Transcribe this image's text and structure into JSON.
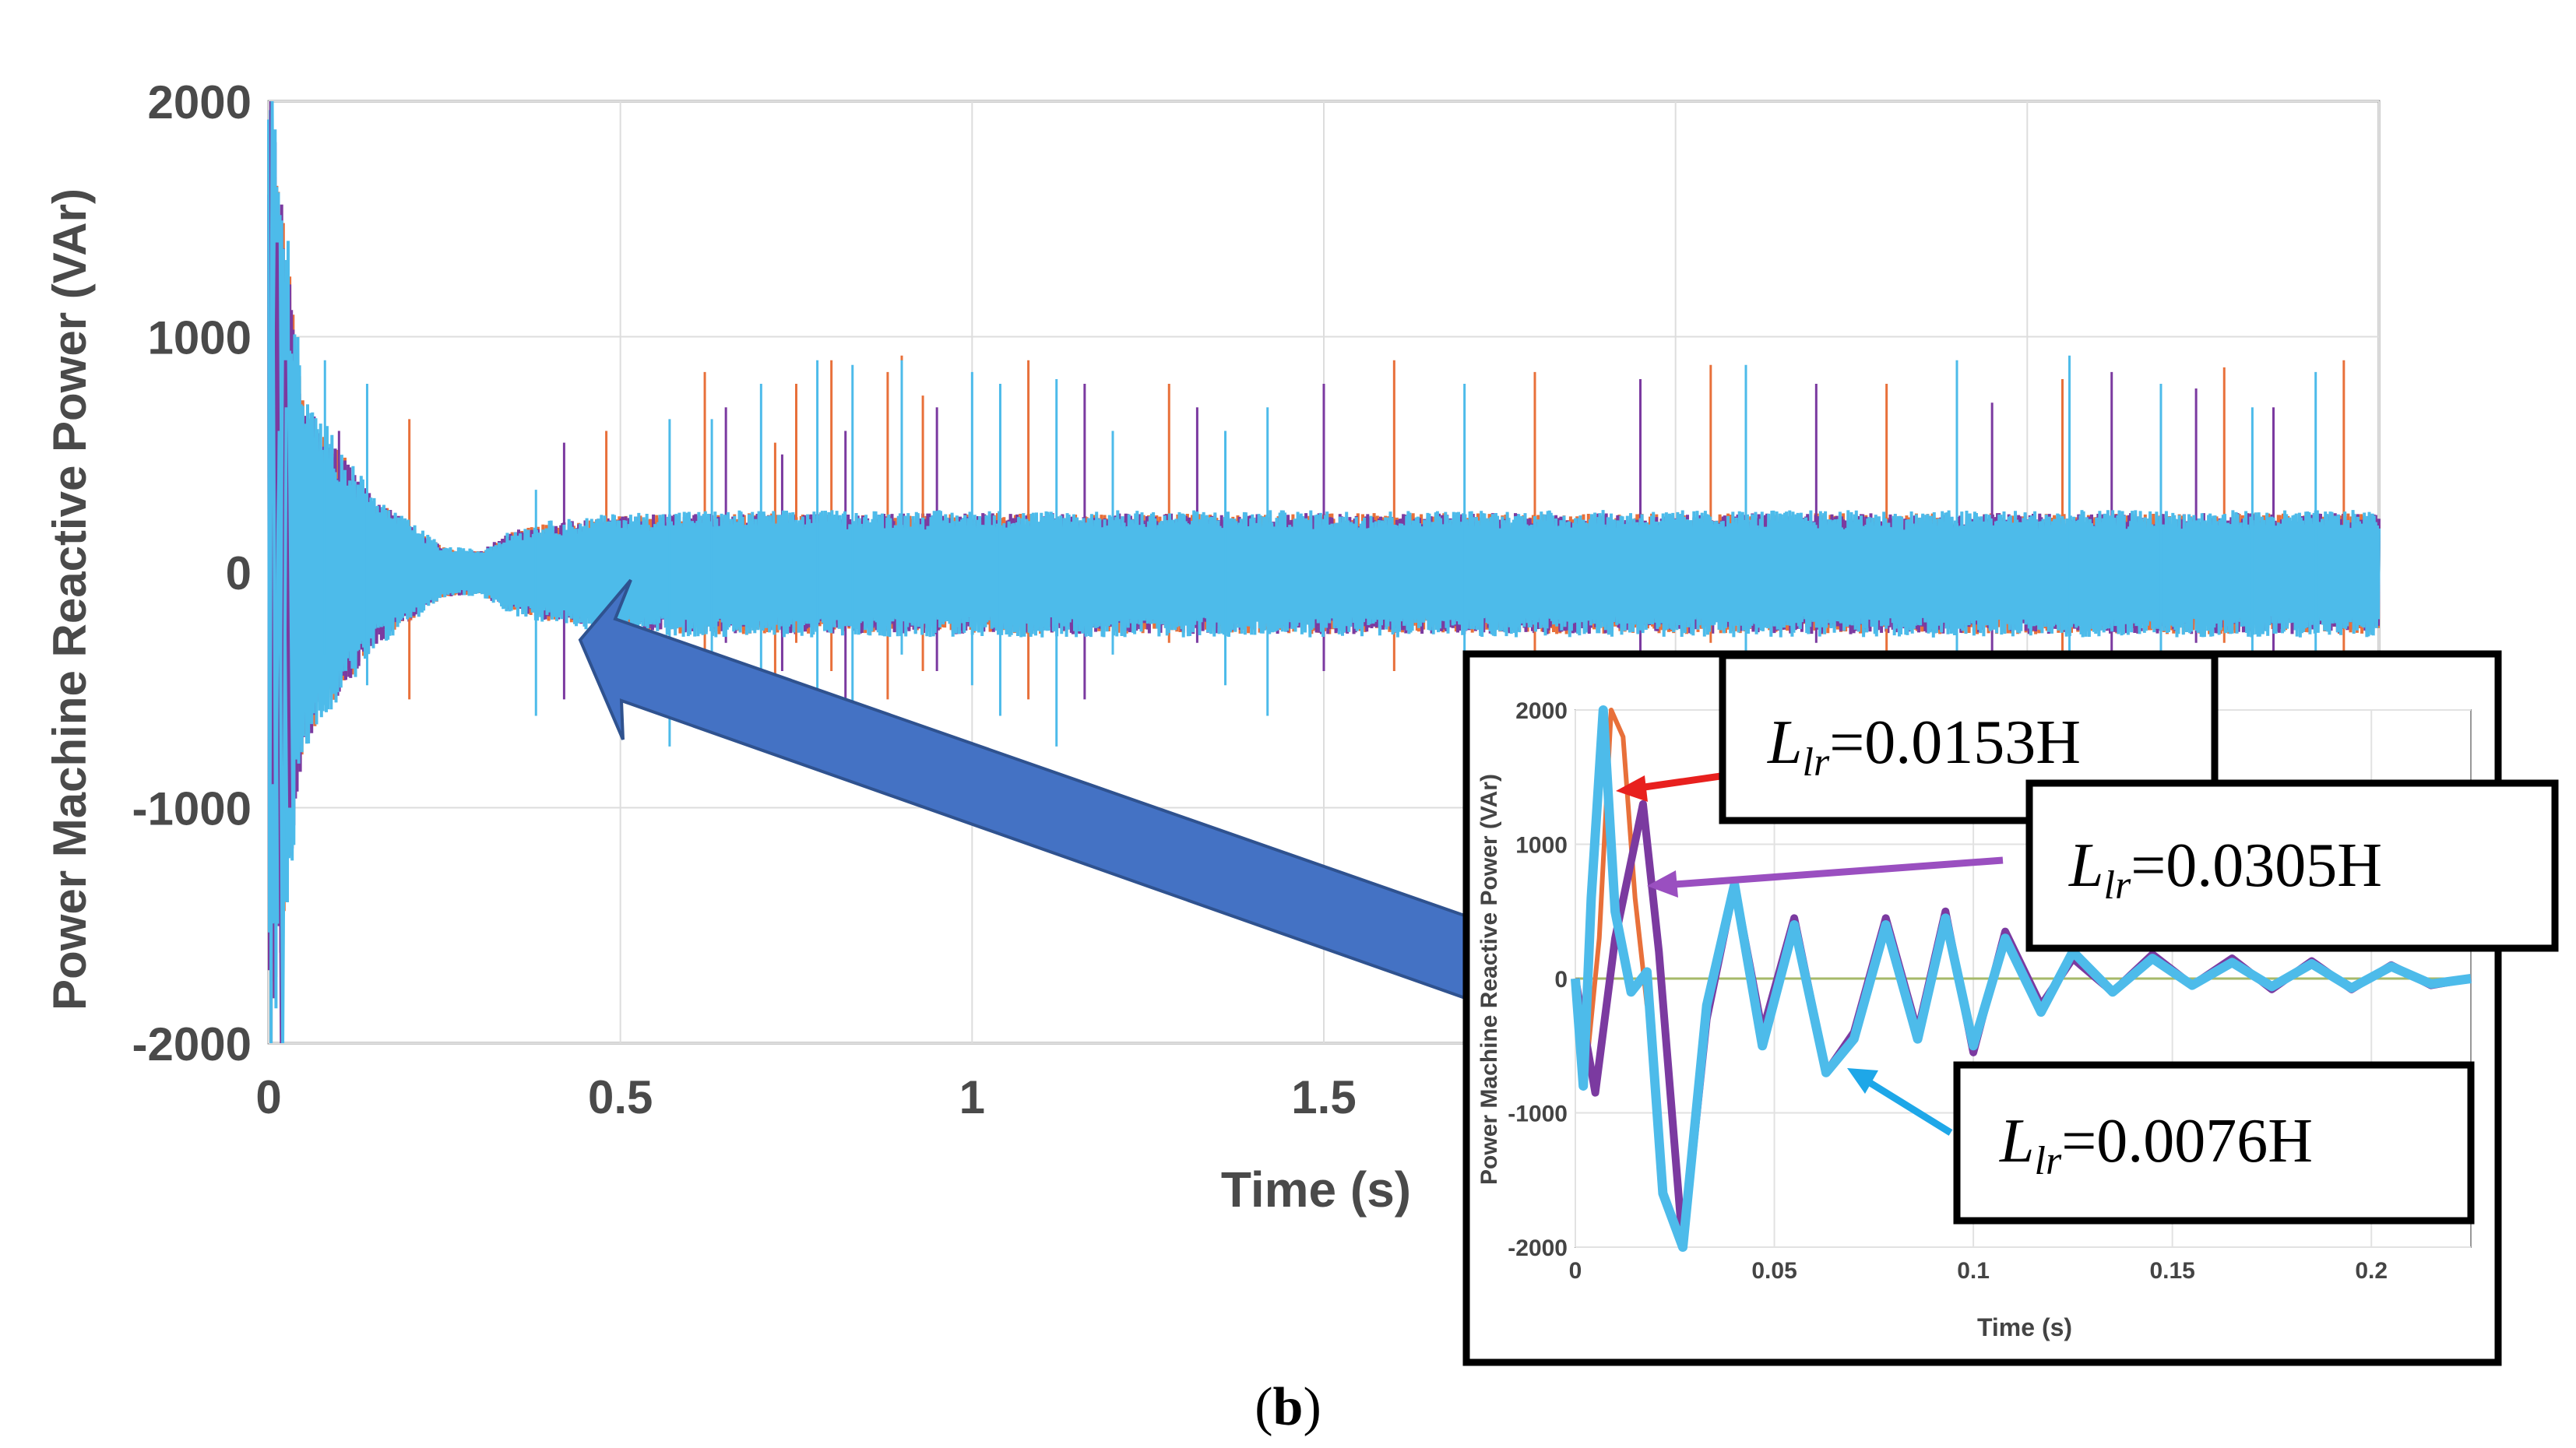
{
  "chart_data": [
    {
      "type": "line",
      "title": "",
      "xlabel": "Time (s)",
      "ylabel": "Power Machine Reactive Power (VAr)",
      "xlim": [
        0,
        3
      ],
      "ylim": [
        -2000,
        2000
      ],
      "grid": true,
      "x_ticks": [
        0,
        0.5,
        1,
        1.5
      ],
      "x_tick_labels": [
        "0",
        "0.5",
        "1",
        "1.5"
      ],
      "y_ticks": [
        2000,
        1000,
        0,
        -1000,
        -2000
      ],
      "y_tick_labels": [
        "2000",
        "1000",
        "0",
        "-1000",
        "-2000"
      ],
      "series": [
        {
          "name": "L_lr=0.0153H",
          "color": "#E8703A",
          "spike_x": [
            0.05,
            0.08,
            0.2,
            0.48,
            0.62,
            0.72,
            0.75,
            0.8,
            0.88,
            0.9,
            0.93,
            1.08,
            1.28,
            1.6,
            1.8,
            2.05,
            2.3,
            2.55,
            2.78,
            2.95
          ],
          "spike_peak": [
            600,
            500,
            650,
            600,
            850,
            550,
            800,
            900,
            850,
            920,
            750,
            900,
            800,
            900,
            850,
            880,
            800,
            820,
            870,
            900
          ]
        },
        {
          "name": "L_lr=0.0305H",
          "color": "#7B3AA0",
          "spike_x": [
            0.04,
            0.1,
            0.42,
            0.65,
            0.73,
            0.82,
            0.9,
            0.95,
            1.16,
            1.32,
            1.5,
            1.95,
            2.2,
            2.45,
            2.62,
            2.74,
            2.85
          ],
          "spike_peak": [
            700,
            600,
            550,
            700,
            500,
            600,
            850,
            700,
            800,
            700,
            800,
            820,
            800,
            720,
            850,
            780,
            700
          ]
        },
        {
          "name": "L_lr=0.0076H",
          "color": "#4DBBEA",
          "envelope_x": [
            0,
            0.02,
            0.05,
            0.1,
            0.15,
            0.2,
            0.25,
            0.3,
            0.35,
            0.4,
            0.5,
            0.6,
            0.8,
            1,
            1.5,
            2,
            2.5,
            3
          ],
          "envelope_amp": [
            2000,
            1500,
            700,
            500,
            300,
            200,
            100,
            90,
            170,
            200,
            230,
            240,
            240,
            240,
            240,
            240,
            240,
            240
          ],
          "spike_x": [
            0.08,
            0.14,
            0.38,
            0.57,
            0.63,
            0.7,
            0.78,
            0.83,
            0.9,
            1.0,
            1.04,
            1.12,
            1.2,
            1.36,
            1.42,
            1.7,
            2.1,
            2.4,
            2.56,
            2.69,
            2.82,
            2.91
          ],
          "spike_peak": [
            900,
            800,
            350,
            650,
            650,
            800,
            900,
            880,
            900,
            850,
            800,
            820,
            600,
            600,
            700,
            800,
            880,
            900,
            920,
            800,
            700,
            850
          ]
        }
      ]
    },
    {
      "type": "line",
      "title": "",
      "xlabel": "Time (s)",
      "ylabel": "Power Machine Reactive Power (VAr)",
      "xlim": [
        0,
        0.225
      ],
      "ylim": [
        -2000,
        2000
      ],
      "grid": true,
      "x_ticks": [
        0,
        0.05,
        0.1,
        0.15,
        0.2
      ],
      "x_tick_labels": [
        "0",
        "0.05",
        "0.1",
        "0.15",
        "0.2"
      ],
      "y_ticks": [
        2000,
        1000,
        0,
        -1000,
        -2000
      ],
      "y_tick_labels": [
        "2000",
        "1000",
        "0",
        "-1000",
        "-2000"
      ],
      "series": [
        {
          "name": "L_lr=0.0153H",
          "color": "#E8703A",
          "x": [
            0,
            0.003,
            0.006,
            0.009,
            0.012,
            0.015,
            0.018
          ],
          "y": [
            0,
            -600,
            300,
            2000,
            1800,
            600,
            -200
          ]
        },
        {
          "name": "L_lr=0.0305H",
          "color": "#7B3AA0",
          "x": [
            0,
            0.005,
            0.01,
            0.017,
            0.021,
            0.027,
            0.033,
            0.04,
            0.047,
            0.055,
            0.063,
            0.07,
            0.078,
            0.086,
            0.093,
            0.1,
            0.108,
            0.117,
            0.125,
            0.135,
            0.145,
            0.155,
            0.165,
            0.175,
            0.185,
            0.195,
            0.205,
            0.215,
            0.225
          ],
          "y": [
            0,
            -850,
            300,
            1300,
            200,
            -2000,
            -300,
            700,
            -400,
            450,
            -700,
            -400,
            450,
            -400,
            500,
            -550,
            350,
            -200,
            150,
            -100,
            180,
            -50,
            150,
            -80,
            130,
            -80,
            100,
            -50,
            0
          ]
        },
        {
          "name": "L_lr=0.0076H",
          "color": "#4DBBEA",
          "x": [
            0,
            0.002,
            0.004,
            0.007,
            0.01,
            0.014,
            0.018,
            0.022,
            0.027,
            0.033,
            0.04,
            0.047,
            0.055,
            0.063,
            0.07,
            0.078,
            0.086,
            0.093,
            0.1,
            0.108,
            0.117,
            0.125,
            0.135,
            0.145,
            0.155,
            0.165,
            0.175,
            0.185,
            0.195,
            0.205,
            0.215,
            0.225
          ],
          "y": [
            0,
            -800,
            600,
            2000,
            500,
            -100,
            50,
            -1600,
            -2000,
            -200,
            700,
            -500,
            400,
            -700,
            -450,
            400,
            -450,
            450,
            -500,
            300,
            -250,
            200,
            -100,
            150,
            -50,
            120,
            -60,
            110,
            -70,
            90,
            -40,
            0
          ]
        },
        {
          "name": "reference",
          "color": "#A6B96A",
          "x": [
            0,
            0.225
          ],
          "y": [
            0,
            0
          ]
        }
      ],
      "annotations": [
        {
          "symbol": "L",
          "sub": "lr",
          "text": "=0.0153H",
          "arrow_color": "#E8201E"
        },
        {
          "symbol": "L",
          "sub": "lr",
          "text": "=0.0305H",
          "arrow_color": "#9A4FC0"
        },
        {
          "symbol": "L",
          "sub": "lr",
          "text": "=0.0076H",
          "arrow_color": "#1EA7E8"
        }
      ]
    }
  ],
  "caption": {
    "open": "(",
    "letter": "b",
    "close": ")"
  }
}
